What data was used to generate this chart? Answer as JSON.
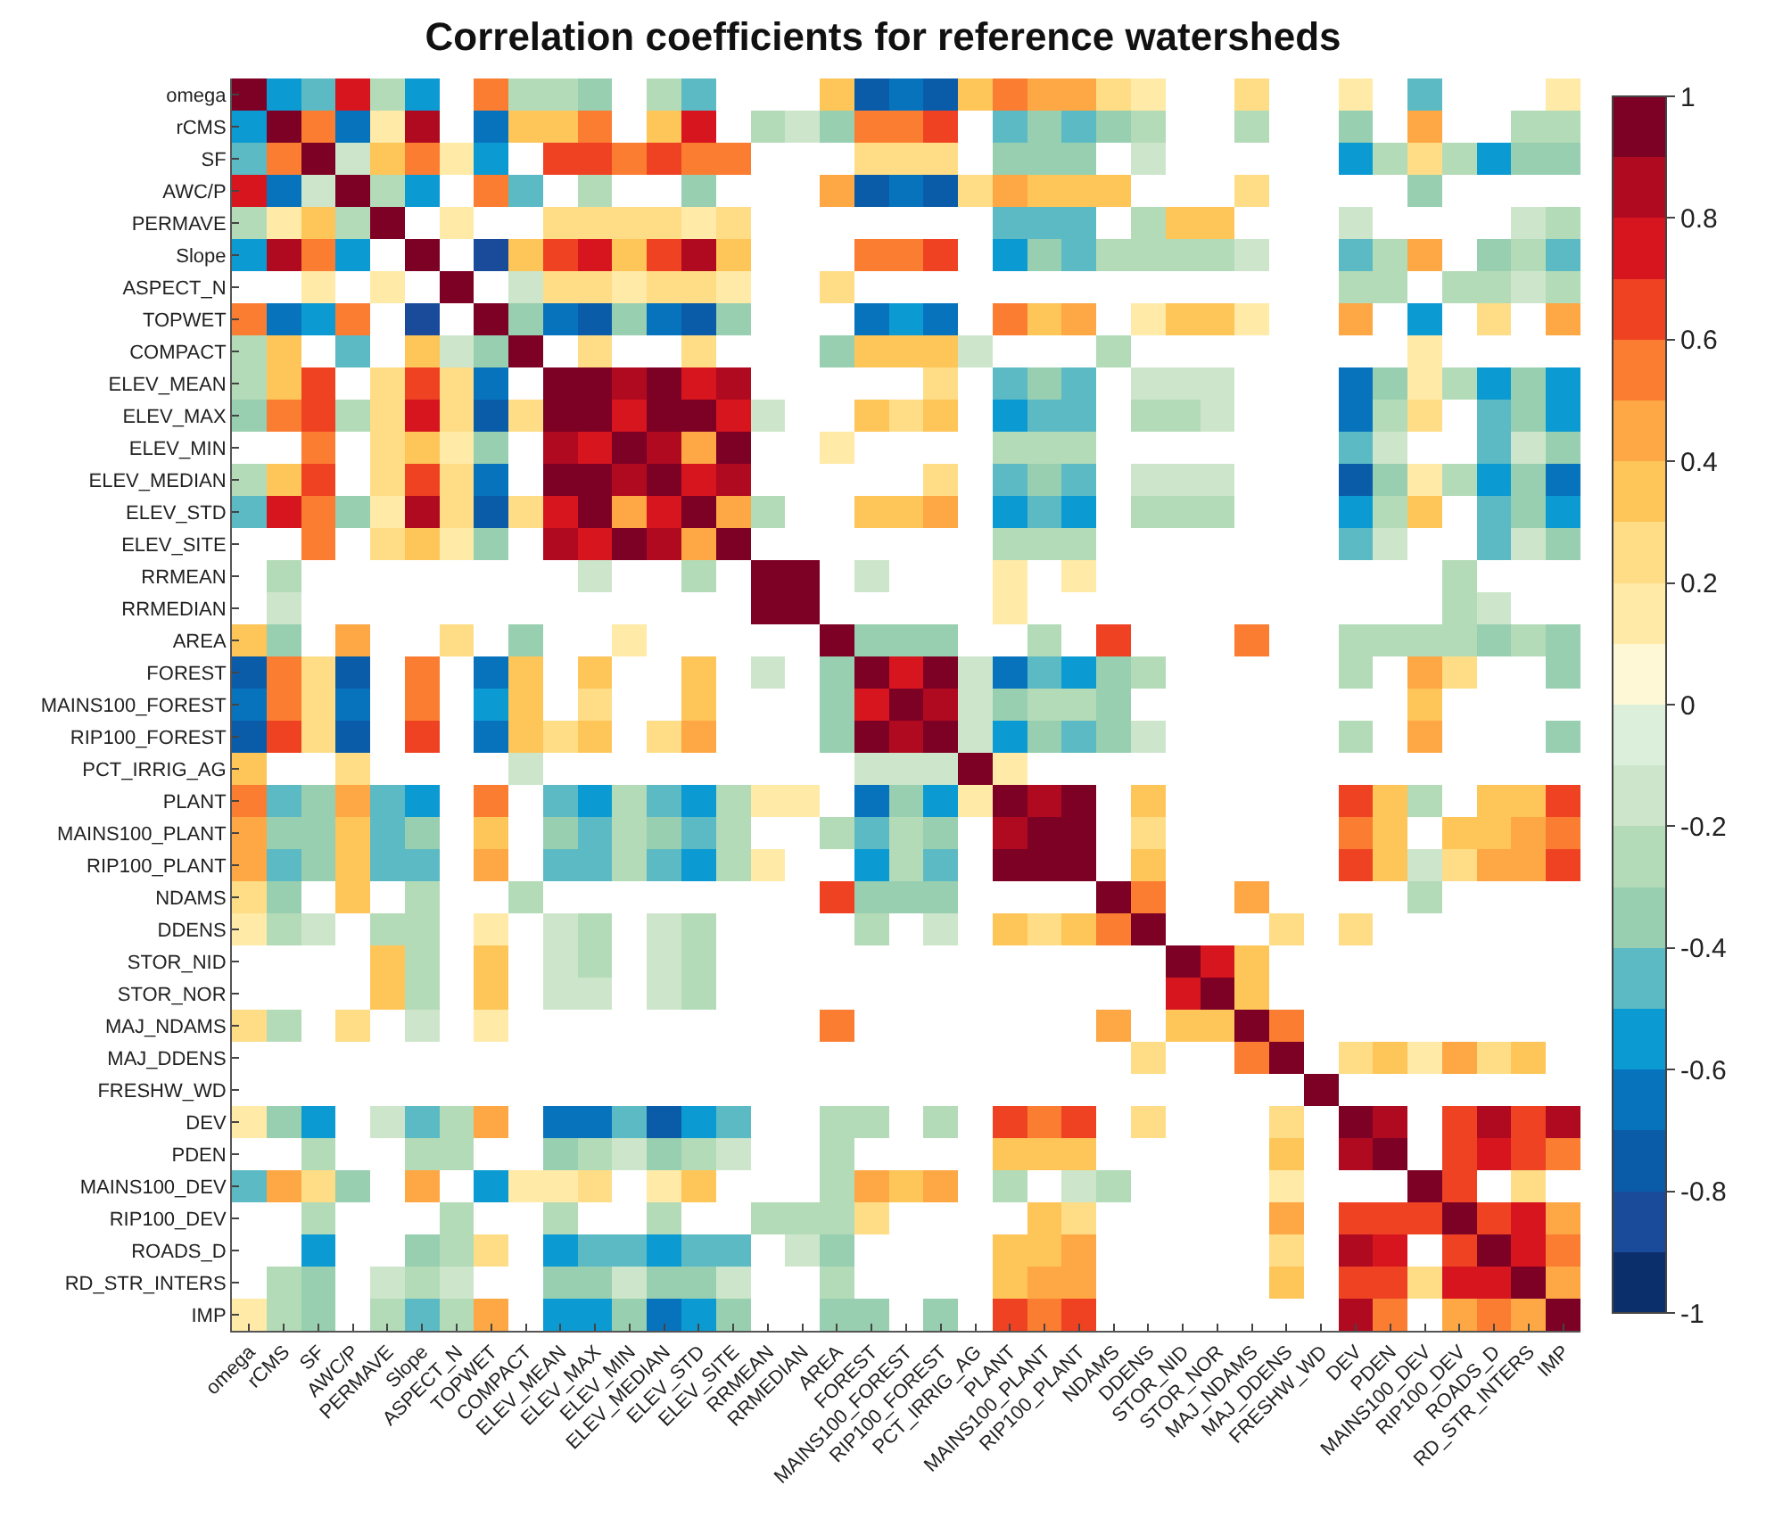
{
  "chart_data": {
    "type": "heatmap",
    "title": "Correlation coefficients for reference watersheds",
    "categories": [
      "omega",
      "rCMS",
      "SF",
      "AWC/P",
      "PERMAVE",
      "Slope",
      "ASPECT_N",
      "TOPWET",
      "COMPACT",
      "ELEV_MEAN",
      "ELEV_MAX",
      "ELEV_MIN",
      "ELEV_MEDIAN",
      "ELEV_STD",
      "ELEV_SITE",
      "RRMEAN",
      "RRMEDIAN",
      "AREA",
      "FOREST",
      "MAINS100_FOREST",
      "RIP100_FOREST",
      "PCT_IRRIG_AG",
      "PLANT",
      "MAINS100_PLANT",
      "RIP100_PLANT",
      "NDAMS",
      "DDENS",
      "STOR_NID",
      "STOR_NOR",
      "MAJ_NDAMS",
      "MAJ_DDENS",
      "FRESHW_WD",
      "DEV",
      "PDEN",
      "MAINS100_DEV",
      "RIP100_DEV",
      "ROADS_D",
      "RD_STR_INTERS",
      "IMP"
    ],
    "y_categories": [
      "omega",
      "rCMS",
      "SF",
      "AWC/P",
      "PERMAVE",
      "Slope",
      "ASPECT_N",
      "TOPWET",
      "COMPACT",
      "ELEV_MEAN",
      "ELEV_MAX",
      "ELEV_MIN",
      "ELEV_MEDIAN",
      "ELEV_STD",
      "ELEV_SITE",
      "RRMEAN",
      "RRMEDIAN",
      "AREA",
      "FOREST",
      "MAINS100_FOREST",
      "RIP100_FOREST",
      "PCT_IRRIG_AG",
      "PLANT",
      "MAINS100_PLANT",
      "RIP100_PLANT",
      "NDAMS",
      "DDENS",
      "STOR_NID",
      "STOR_NOR",
      "MAJ_NDAMS",
      "MAJ_DDENS",
      "FRESHW_WD",
      "DEV",
      "PDEN",
      "MAINS100_DEV",
      "RIP100_DEV",
      "ROADS_D",
      "RD_STR_INTERS",
      "IMP"
    ],
    "cells": [
      [
        1,
        -0.55,
        -0.45,
        0.75,
        -0.25,
        -0.55,
        null,
        0.55,
        -0.25,
        -0.25,
        -0.35,
        null,
        -0.25,
        -0.45,
        null,
        null,
        null,
        0.35,
        -0.75,
        -0.65,
        -0.75,
        0.35,
        0.55,
        0.45,
        0.45,
        0.25,
        0.15,
        null,
        null,
        0.25,
        null,
        null,
        0.15,
        null,
        -0.45,
        null,
        null,
        null,
        0.15
      ],
      [
        -0.55,
        1,
        0.55,
        -0.65,
        0.15,
        0.85,
        null,
        -0.65,
        0.35,
        0.35,
        0.55,
        null,
        0.35,
        0.75,
        null,
        -0.25,
        -0.15,
        -0.35,
        0.55,
        0.55,
        0.65,
        null,
        -0.45,
        -0.35,
        -0.45,
        -0.35,
        -0.25,
        null,
        null,
        -0.25,
        null,
        null,
        -0.35,
        null,
        0.45,
        null,
        null,
        -0.25,
        -0.25
      ],
      [
        -0.45,
        0.55,
        1,
        -0.15,
        0.35,
        0.55,
        0.15,
        -0.55,
        null,
        0.65,
        0.65,
        0.55,
        0.65,
        0.55,
        0.55,
        null,
        null,
        null,
        0.25,
        0.25,
        0.25,
        null,
        -0.35,
        -0.35,
        -0.35,
        null,
        -0.15,
        null,
        null,
        null,
        null,
        null,
        -0.55,
        -0.25,
        0.25,
        -0.25,
        -0.55,
        -0.35,
        -0.35
      ],
      [
        0.75,
        -0.65,
        -0.15,
        1,
        -0.25,
        -0.55,
        null,
        0.55,
        -0.45,
        null,
        -0.25,
        null,
        null,
        -0.35,
        null,
        null,
        null,
        0.45,
        -0.75,
        -0.65,
        -0.75,
        0.25,
        0.45,
        0.35,
        0.35,
        0.35,
        null,
        null,
        null,
        0.25,
        null,
        null,
        null,
        null,
        -0.35,
        null,
        null,
        null,
        null
      ],
      [
        -0.25,
        0.15,
        0.35,
        -0.25,
        1,
        null,
        0.15,
        null,
        null,
        0.25,
        0.25,
        0.25,
        0.25,
        0.15,
        0.25,
        null,
        null,
        null,
        null,
        null,
        null,
        null,
        -0.45,
        -0.45,
        -0.45,
        null,
        -0.25,
        0.35,
        0.35,
        null,
        null,
        null,
        -0.15,
        null,
        null,
        null,
        null,
        -0.15,
        -0.25
      ],
      [
        -0.55,
        0.85,
        0.55,
        -0.55,
        null,
        1,
        null,
        -0.85,
        0.35,
        0.65,
        0.75,
        0.35,
        0.65,
        0.85,
        0.35,
        null,
        null,
        null,
        0.55,
        0.55,
        0.65,
        null,
        -0.55,
        -0.35,
        -0.45,
        -0.25,
        -0.25,
        -0.25,
        -0.25,
        -0.15,
        null,
        null,
        -0.45,
        -0.25,
        0.45,
        null,
        -0.35,
        -0.25,
        -0.45
      ],
      [
        null,
        null,
        0.15,
        null,
        0.15,
        null,
        1,
        null,
        -0.15,
        0.25,
        0.25,
        0.15,
        0.25,
        0.25,
        0.15,
        null,
        null,
        0.25,
        null,
        null,
        null,
        null,
        null,
        null,
        null,
        null,
        null,
        null,
        null,
        null,
        null,
        null,
        -0.25,
        -0.25,
        null,
        -0.25,
        -0.25,
        -0.15,
        -0.25
      ],
      [
        0.55,
        -0.65,
        -0.55,
        0.55,
        null,
        -0.85,
        null,
        1,
        -0.35,
        -0.65,
        -0.75,
        -0.35,
        -0.65,
        -0.75,
        -0.35,
        null,
        null,
        null,
        -0.65,
        -0.55,
        -0.65,
        null,
        0.55,
        0.35,
        0.45,
        null,
        0.15,
        0.35,
        0.35,
        0.15,
        null,
        null,
        0.45,
        null,
        -0.55,
        null,
        0.25,
        null,
        0.45
      ],
      [
        -0.25,
        0.35,
        null,
        -0.45,
        null,
        0.35,
        -0.15,
        -0.35,
        1,
        null,
        0.25,
        null,
        null,
        0.25,
        null,
        null,
        null,
        -0.35,
        0.35,
        0.35,
        0.35,
        -0.15,
        null,
        null,
        null,
        -0.25,
        null,
        null,
        null,
        null,
        null,
        null,
        null,
        null,
        0.15,
        null,
        null,
        null,
        null
      ],
      [
        -0.25,
        0.35,
        0.65,
        null,
        0.25,
        0.65,
        0.25,
        -0.65,
        null,
        1,
        0.95,
        0.85,
        0.95,
        0.75,
        0.85,
        null,
        null,
        null,
        null,
        null,
        0.25,
        null,
        -0.45,
        -0.35,
        -0.45,
        null,
        -0.15,
        -0.15,
        -0.15,
        null,
        null,
        null,
        -0.65,
        -0.35,
        0.15,
        -0.25,
        -0.55,
        -0.35,
        -0.55
      ],
      [
        -0.35,
        0.55,
        0.65,
        -0.25,
        0.25,
        0.75,
        0.25,
        -0.75,
        0.25,
        0.95,
        1,
        0.75,
        0.95,
        0.95,
        0.75,
        -0.15,
        null,
        null,
        0.35,
        0.25,
        0.35,
        null,
        -0.55,
        -0.45,
        -0.45,
        null,
        -0.25,
        -0.25,
        -0.15,
        null,
        null,
        null,
        -0.65,
        -0.25,
        0.25,
        null,
        -0.45,
        -0.35,
        -0.55
      ],
      [
        null,
        null,
        0.55,
        null,
        0.25,
        0.35,
        0.15,
        -0.35,
        null,
        0.85,
        0.75,
        1,
        0.85,
        0.45,
        0.95,
        null,
        null,
        0.15,
        null,
        null,
        null,
        null,
        -0.25,
        -0.25,
        -0.25,
        null,
        null,
        null,
        null,
        null,
        null,
        null,
        -0.45,
        -0.15,
        null,
        null,
        -0.45,
        -0.15,
        -0.35
      ],
      [
        -0.25,
        0.35,
        0.65,
        null,
        0.25,
        0.65,
        0.25,
        -0.65,
        null,
        0.95,
        0.95,
        0.85,
        1,
        0.75,
        0.85,
        null,
        null,
        null,
        null,
        null,
        0.25,
        null,
        -0.45,
        -0.35,
        -0.45,
        null,
        -0.15,
        -0.15,
        -0.15,
        null,
        null,
        null,
        -0.75,
        -0.35,
        0.15,
        -0.25,
        -0.55,
        -0.35,
        -0.65
      ],
      [
        -0.45,
        0.75,
        0.55,
        -0.35,
        0.15,
        0.85,
        0.25,
        -0.75,
        0.25,
        0.75,
        0.95,
        0.45,
        0.75,
        1,
        0.45,
        -0.25,
        null,
        null,
        0.35,
        0.35,
        0.45,
        null,
        -0.55,
        -0.45,
        -0.55,
        null,
        -0.25,
        -0.25,
        -0.25,
        null,
        null,
        null,
        -0.55,
        -0.25,
        0.35,
        null,
        -0.45,
        -0.35,
        -0.55
      ],
      [
        null,
        null,
        0.55,
        null,
        0.25,
        0.35,
        0.15,
        -0.35,
        null,
        0.85,
        0.75,
        0.95,
        0.85,
        0.45,
        1,
        null,
        null,
        null,
        null,
        null,
        null,
        null,
        -0.25,
        -0.25,
        -0.25,
        null,
        null,
        null,
        null,
        null,
        null,
        null,
        -0.45,
        -0.15,
        null,
        null,
        -0.45,
        -0.15,
        -0.35
      ],
      [
        null,
        -0.25,
        null,
        null,
        null,
        null,
        null,
        null,
        null,
        null,
        -0.15,
        null,
        null,
        -0.25,
        null,
        1,
        0.95,
        null,
        -0.15,
        null,
        null,
        null,
        0.15,
        null,
        0.15,
        null,
        null,
        null,
        null,
        null,
        null,
        null,
        null,
        null,
        null,
        -0.25,
        null,
        null,
        null
      ],
      [
        null,
        -0.15,
        null,
        null,
        null,
        null,
        null,
        null,
        null,
        null,
        null,
        null,
        null,
        null,
        null,
        0.95,
        1,
        null,
        null,
        null,
        null,
        null,
        0.15,
        null,
        null,
        null,
        null,
        null,
        null,
        null,
        null,
        null,
        null,
        null,
        null,
        -0.25,
        -0.15,
        null,
        null
      ],
      [
        0.35,
        -0.35,
        null,
        0.45,
        null,
        null,
        0.25,
        null,
        -0.35,
        null,
        null,
        0.15,
        null,
        null,
        null,
        null,
        null,
        1,
        -0.35,
        -0.35,
        -0.35,
        null,
        null,
        -0.25,
        null,
        0.65,
        null,
        null,
        null,
        0.55,
        null,
        null,
        -0.25,
        -0.25,
        -0.25,
        -0.25,
        -0.35,
        -0.25,
        -0.35
      ],
      [
        -0.75,
        0.55,
        0.25,
        -0.75,
        null,
        0.55,
        null,
        -0.65,
        0.35,
        null,
        0.35,
        null,
        null,
        0.35,
        null,
        -0.15,
        null,
        -0.35,
        1,
        0.75,
        0.95,
        -0.15,
        -0.65,
        -0.45,
        -0.55,
        -0.35,
        -0.25,
        null,
        null,
        null,
        null,
        null,
        -0.25,
        null,
        0.45,
        0.25,
        null,
        null,
        -0.35
      ],
      [
        -0.65,
        0.55,
        0.25,
        -0.65,
        null,
        0.55,
        null,
        -0.55,
        0.35,
        null,
        0.25,
        null,
        null,
        0.35,
        null,
        null,
        null,
        -0.35,
        0.75,
        1,
        0.85,
        -0.15,
        -0.35,
        -0.25,
        -0.25,
        -0.35,
        null,
        null,
        null,
        null,
        null,
        null,
        null,
        null,
        0.35,
        null,
        null,
        null,
        null
      ],
      [
        -0.75,
        0.65,
        0.25,
        -0.75,
        null,
        0.65,
        null,
        -0.65,
        0.35,
        0.25,
        0.35,
        null,
        0.25,
        0.45,
        null,
        null,
        null,
        -0.35,
        0.95,
        0.85,
        1,
        -0.15,
        -0.55,
        -0.35,
        -0.45,
        -0.35,
        -0.15,
        null,
        null,
        null,
        null,
        null,
        -0.25,
        null,
        0.45,
        null,
        null,
        null,
        -0.35
      ],
      [
        0.35,
        null,
        null,
        0.25,
        null,
        null,
        null,
        null,
        -0.15,
        null,
        null,
        null,
        null,
        null,
        null,
        null,
        null,
        null,
        -0.15,
        -0.15,
        -0.15,
        1,
        0.15,
        null,
        null,
        null,
        null,
        null,
        null,
        null,
        null,
        null,
        null,
        null,
        null,
        null,
        null,
        null,
        null
      ],
      [
        0.55,
        -0.45,
        -0.35,
        0.45,
        -0.45,
        -0.55,
        null,
        0.55,
        null,
        -0.45,
        -0.55,
        -0.25,
        -0.45,
        -0.55,
        -0.25,
        0.15,
        0.15,
        null,
        -0.65,
        -0.35,
        -0.55,
        0.15,
        1,
        0.85,
        0.95,
        null,
        0.35,
        null,
        null,
        null,
        null,
        null,
        0.65,
        0.35,
        -0.25,
        null,
        0.35,
        0.35,
        0.65
      ],
      [
        0.45,
        -0.35,
        -0.35,
        0.35,
        -0.45,
        -0.35,
        null,
        0.35,
        null,
        -0.35,
        -0.45,
        -0.25,
        -0.35,
        -0.45,
        -0.25,
        null,
        null,
        -0.25,
        -0.45,
        -0.25,
        -0.35,
        null,
        0.85,
        1,
        0.95,
        null,
        0.25,
        null,
        null,
        null,
        null,
        null,
        0.55,
        0.35,
        null,
        0.35,
        0.35,
        0.45,
        0.55
      ],
      [
        0.45,
        -0.45,
        -0.35,
        0.35,
        -0.45,
        -0.45,
        null,
        0.45,
        null,
        -0.45,
        -0.45,
        -0.25,
        -0.45,
        -0.55,
        -0.25,
        0.15,
        null,
        null,
        -0.55,
        -0.25,
        -0.45,
        null,
        0.95,
        0.95,
        1,
        null,
        0.35,
        null,
        null,
        null,
        null,
        null,
        0.65,
        0.35,
        -0.15,
        0.25,
        0.45,
        0.45,
        0.65
      ],
      [
        0.25,
        -0.35,
        null,
        0.35,
        null,
        -0.25,
        null,
        null,
        -0.25,
        null,
        null,
        null,
        null,
        null,
        null,
        null,
        null,
        0.65,
        -0.35,
        -0.35,
        -0.35,
        null,
        null,
        null,
        null,
        1,
        0.55,
        null,
        null,
        0.45,
        null,
        null,
        null,
        null,
        -0.25,
        null,
        null,
        null,
        null
      ],
      [
        0.15,
        -0.25,
        -0.15,
        null,
        -0.25,
        -0.25,
        null,
        0.15,
        null,
        -0.15,
        -0.25,
        null,
        -0.15,
        -0.25,
        null,
        null,
        null,
        null,
        -0.25,
        null,
        -0.15,
        null,
        0.35,
        0.25,
        0.35,
        0.55,
        1,
        null,
        null,
        null,
        0.25,
        null,
        0.25,
        null,
        null,
        null,
        null,
        null,
        null
      ],
      [
        null,
        null,
        null,
        null,
        0.35,
        -0.25,
        null,
        0.35,
        null,
        -0.15,
        -0.25,
        null,
        -0.15,
        -0.25,
        null,
        null,
        null,
        null,
        null,
        null,
        null,
        null,
        null,
        null,
        null,
        null,
        null,
        1,
        0.75,
        0.35,
        null,
        null,
        null,
        null,
        null,
        null,
        null,
        null,
        null
      ],
      [
        null,
        null,
        null,
        null,
        0.35,
        -0.25,
        null,
        0.35,
        null,
        -0.15,
        -0.15,
        null,
        -0.15,
        -0.25,
        null,
        null,
        null,
        null,
        null,
        null,
        null,
        null,
        null,
        null,
        null,
        null,
        null,
        0.75,
        1,
        0.35,
        null,
        null,
        null,
        null,
        null,
        null,
        null,
        null,
        null
      ],
      [
        0.25,
        -0.25,
        null,
        0.25,
        null,
        -0.15,
        null,
        0.15,
        null,
        null,
        null,
        null,
        null,
        null,
        null,
        null,
        null,
        0.55,
        null,
        null,
        null,
        null,
        null,
        null,
        null,
        0.45,
        null,
        0.35,
        0.35,
        1,
        0.55,
        null,
        null,
        null,
        null,
        null,
        null,
        null,
        null
      ],
      [
        null,
        null,
        null,
        null,
        null,
        null,
        null,
        null,
        null,
        null,
        null,
        null,
        null,
        null,
        null,
        null,
        null,
        null,
        null,
        null,
        null,
        null,
        null,
        null,
        null,
        null,
        0.25,
        null,
        null,
        0.55,
        1,
        null,
        0.25,
        0.35,
        0.15,
        0.45,
        0.25,
        0.35,
        null
      ],
      [
        null,
        null,
        null,
        null,
        null,
        null,
        null,
        null,
        null,
        null,
        null,
        null,
        null,
        null,
        null,
        null,
        null,
        null,
        null,
        null,
        null,
        null,
        null,
        null,
        null,
        null,
        null,
        null,
        null,
        null,
        null,
        1,
        null,
        null,
        null,
        null,
        null,
        null,
        null
      ],
      [
        0.15,
        -0.35,
        -0.55,
        null,
        -0.15,
        -0.45,
        -0.25,
        0.45,
        null,
        -0.65,
        -0.65,
        -0.45,
        -0.75,
        -0.55,
        -0.45,
        null,
        null,
        -0.25,
        -0.25,
        null,
        -0.25,
        null,
        0.65,
        0.55,
        0.65,
        null,
        0.25,
        null,
        null,
        null,
        0.25,
        null,
        1,
        0.85,
        null,
        0.65,
        0.85,
        0.65,
        0.85
      ],
      [
        null,
        null,
        -0.25,
        null,
        null,
        -0.25,
        -0.25,
        null,
        null,
        -0.35,
        -0.25,
        -0.15,
        -0.35,
        -0.25,
        -0.15,
        null,
        null,
        -0.25,
        null,
        null,
        null,
        null,
        0.35,
        0.35,
        0.35,
        null,
        null,
        null,
        null,
        null,
        0.35,
        null,
        0.85,
        1,
        null,
        0.65,
        0.75,
        0.65,
        0.55
      ],
      [
        -0.45,
        0.45,
        0.25,
        -0.35,
        null,
        0.45,
        null,
        -0.55,
        0.15,
        0.15,
        0.25,
        null,
        0.15,
        0.35,
        null,
        null,
        null,
        -0.25,
        0.45,
        0.35,
        0.45,
        null,
        -0.25,
        null,
        -0.15,
        -0.25,
        null,
        null,
        null,
        null,
        0.15,
        null,
        null,
        null,
        1,
        0.65,
        null,
        0.25,
        null
      ],
      [
        null,
        null,
        -0.25,
        null,
        null,
        null,
        -0.25,
        null,
        null,
        -0.25,
        null,
        null,
        -0.25,
        null,
        null,
        -0.25,
        -0.25,
        -0.25,
        0.25,
        null,
        null,
        null,
        null,
        0.35,
        0.25,
        null,
        null,
        null,
        null,
        null,
        0.45,
        null,
        0.65,
        0.65,
        0.65,
        1,
        0.65,
        0.75,
        0.45
      ],
      [
        null,
        null,
        -0.55,
        null,
        null,
        -0.35,
        -0.25,
        0.25,
        null,
        -0.55,
        -0.45,
        -0.45,
        -0.55,
        -0.45,
        -0.45,
        null,
        -0.15,
        -0.35,
        null,
        null,
        null,
        null,
        0.35,
        0.35,
        0.45,
        null,
        null,
        null,
        null,
        null,
        0.25,
        null,
        0.85,
        0.75,
        null,
        0.65,
        1,
        0.75,
        0.55
      ],
      [
        null,
        -0.25,
        -0.35,
        null,
        -0.15,
        -0.25,
        -0.15,
        null,
        null,
        -0.35,
        -0.35,
        -0.15,
        -0.35,
        -0.35,
        -0.15,
        null,
        null,
        -0.25,
        null,
        null,
        null,
        null,
        0.35,
        0.45,
        0.45,
        null,
        null,
        null,
        null,
        null,
        0.35,
        null,
        0.65,
        0.65,
        0.25,
        0.75,
        0.75,
        1,
        0.45
      ],
      [
        0.15,
        -0.25,
        -0.35,
        null,
        -0.25,
        -0.45,
        -0.25,
        0.45,
        null,
        -0.55,
        -0.55,
        -0.35,
        -0.65,
        -0.55,
        -0.35,
        null,
        null,
        -0.35,
        -0.35,
        null,
        -0.35,
        null,
        0.65,
        0.55,
        0.65,
        null,
        null,
        null,
        null,
        null,
        null,
        null,
        0.85,
        0.55,
        null,
        0.45,
        0.55,
        0.45,
        1
      ]
    ],
    "clim": [
      -1,
      1
    ],
    "cticks": [
      -1,
      -0.8,
      -0.6,
      -0.4,
      -0.2,
      0,
      0.2,
      0.4,
      0.6,
      0.8,
      1
    ],
    "colors": [
      "#0a2f6b",
      "#1a4a9a",
      "#0b5ca8",
      "#0773bd",
      "#0c9ad3",
      "#5cbac4",
      "#97cfb0",
      "#b4dbb8",
      "#cde6cb",
      "#dcefdb",
      "#fff8d6",
      "#ffeaa8",
      "#fedd86",
      "#fec559",
      "#fda745",
      "#fb7d32",
      "#ef4223",
      "#d7151e",
      "#b00a20",
      "#7d0025"
    ]
  }
}
